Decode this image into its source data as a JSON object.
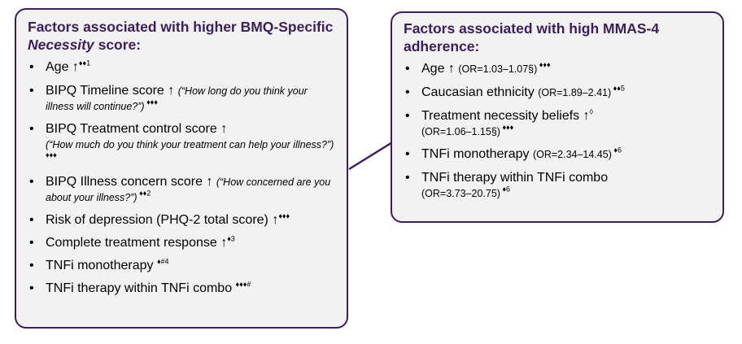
{
  "left_box": {
    "title_part1": "Factors associated with higher BMQ-Specific ",
    "title_italic": "Necessity",
    "title_part2": " score:",
    "items": [
      {
        "main": "Age ↑",
        "sup": "♦♦1",
        "detail": ""
      },
      {
        "main": "BIPQ Timeline score ↑ ",
        "detail": "(“How long do you think your illness will continue?”)",
        "sup": " ♦♦♦"
      },
      {
        "main": "BIPQ Treatment control score ↑",
        "detail": "(“How much do you think your treatment can help your illness?”)",
        "sup": " ♦♦♦"
      },
      {
        "main": "BIPQ Illness concern score ↑ ",
        "detail": "(“How concerned are you about your illness?”)",
        "sup": " ♦♦2"
      },
      {
        "main": "Risk of depression (PHQ-2 total score) ↑",
        "sup": "♦♦♦",
        "detail": ""
      },
      {
        "main": "Complete treatment response ↑",
        "sup": "♦3",
        "detail": ""
      },
      {
        "main": "TNFi monotherapy ",
        "sup": "♦#4",
        "detail": ""
      },
      {
        "main": "TNFi therapy within TNFi combo ",
        "sup": "♦♦♦#",
        "detail": ""
      }
    ]
  },
  "right_box": {
    "title": "Factors associated with high MMAS-4 adherence:",
    "items": [
      {
        "main": "Age ↑ ",
        "small": "(OR=1.03–1.07§)",
        "sup": " ♦♦♦"
      },
      {
        "main": "Caucasian ethnicity ",
        "small": "(OR=1.89–2.41)",
        "sup": " ♦♦5"
      },
      {
        "main": "Treatment necessity beliefs ↑",
        "sup_inline": "◊",
        "small": "(OR=1.06–1.15§)",
        "sup": " ♦♦♦"
      },
      {
        "main": "TNFi monotherapy ",
        "small": "(OR=2.34–14.45)",
        "sup": " ♦6"
      },
      {
        "main": "TNFi therapy within TNFi combo",
        "small": "(OR=3.73–20.75)",
        "sup": " ♦6"
      }
    ]
  },
  "colors": {
    "border": "#3b1f5c",
    "box_fill": "#f2f2f2",
    "title": "#3b1f5c"
  }
}
